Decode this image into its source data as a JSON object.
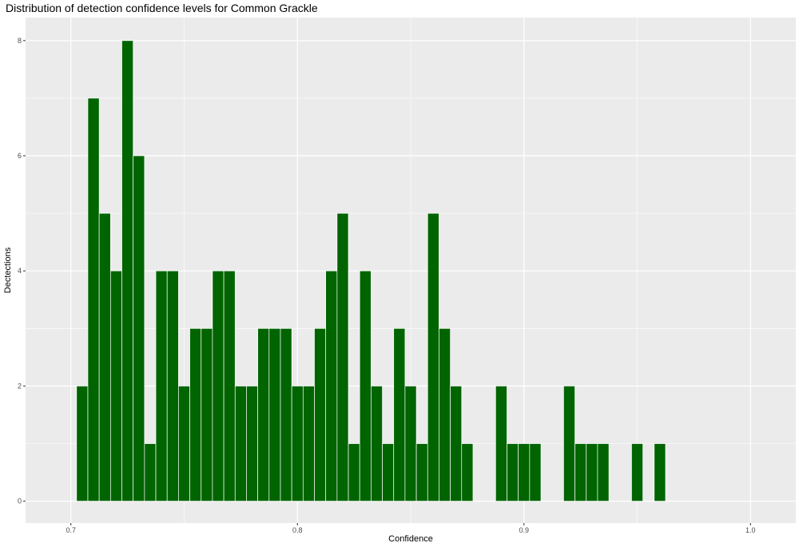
{
  "chart_data": {
    "type": "bar",
    "title": "Distribution of detection confidence levels for Common Grackle",
    "xlabel": "Confidence",
    "ylabel": "Dectections",
    "xlim": [
      0.68,
      1.02
    ],
    "ylim": [
      -0.38,
      8.4
    ],
    "x_ticks": [
      0.7,
      0.8,
      0.9,
      1.0
    ],
    "x_tick_labels": [
      "0.7",
      "0.8",
      "0.9",
      "1.0"
    ],
    "y_ticks": [
      0,
      2,
      4,
      6,
      8
    ],
    "y_tick_labels": [
      "0",
      "2",
      "4",
      "6",
      "8"
    ],
    "bin_width": 0.005,
    "grid": true,
    "colors": {
      "bar_fill": "#006400",
      "bar_outline": "#ffffff",
      "panel": "#ebebeb",
      "grid": "#ffffff"
    },
    "bins": [
      {
        "x": 0.705,
        "value": 2
      },
      {
        "x": 0.71,
        "value": 7
      },
      {
        "x": 0.715,
        "value": 5
      },
      {
        "x": 0.72,
        "value": 4
      },
      {
        "x": 0.725,
        "value": 8
      },
      {
        "x": 0.73,
        "value": 6
      },
      {
        "x": 0.735,
        "value": 1
      },
      {
        "x": 0.74,
        "value": 4
      },
      {
        "x": 0.745,
        "value": 4
      },
      {
        "x": 0.75,
        "value": 2
      },
      {
        "x": 0.755,
        "value": 3
      },
      {
        "x": 0.76,
        "value": 3
      },
      {
        "x": 0.765,
        "value": 4
      },
      {
        "x": 0.77,
        "value": 4
      },
      {
        "x": 0.775,
        "value": 2
      },
      {
        "x": 0.78,
        "value": 2
      },
      {
        "x": 0.785,
        "value": 3
      },
      {
        "x": 0.79,
        "value": 3
      },
      {
        "x": 0.795,
        "value": 3
      },
      {
        "x": 0.8,
        "value": 2
      },
      {
        "x": 0.805,
        "value": 2
      },
      {
        "x": 0.81,
        "value": 3
      },
      {
        "x": 0.815,
        "value": 4
      },
      {
        "x": 0.82,
        "value": 5
      },
      {
        "x": 0.825,
        "value": 1
      },
      {
        "x": 0.83,
        "value": 4
      },
      {
        "x": 0.835,
        "value": 2
      },
      {
        "x": 0.84,
        "value": 1
      },
      {
        "x": 0.845,
        "value": 3
      },
      {
        "x": 0.85,
        "value": 2
      },
      {
        "x": 0.855,
        "value": 1
      },
      {
        "x": 0.86,
        "value": 5
      },
      {
        "x": 0.865,
        "value": 3
      },
      {
        "x": 0.87,
        "value": 2
      },
      {
        "x": 0.875,
        "value": 1
      },
      {
        "x": 0.89,
        "value": 2
      },
      {
        "x": 0.895,
        "value": 1
      },
      {
        "x": 0.9,
        "value": 1
      },
      {
        "x": 0.905,
        "value": 1
      },
      {
        "x": 0.92,
        "value": 2
      },
      {
        "x": 0.925,
        "value": 1
      },
      {
        "x": 0.93,
        "value": 1
      },
      {
        "x": 0.935,
        "value": 1
      },
      {
        "x": 0.95,
        "value": 1
      },
      {
        "x": 0.96,
        "value": 1
      }
    ]
  }
}
